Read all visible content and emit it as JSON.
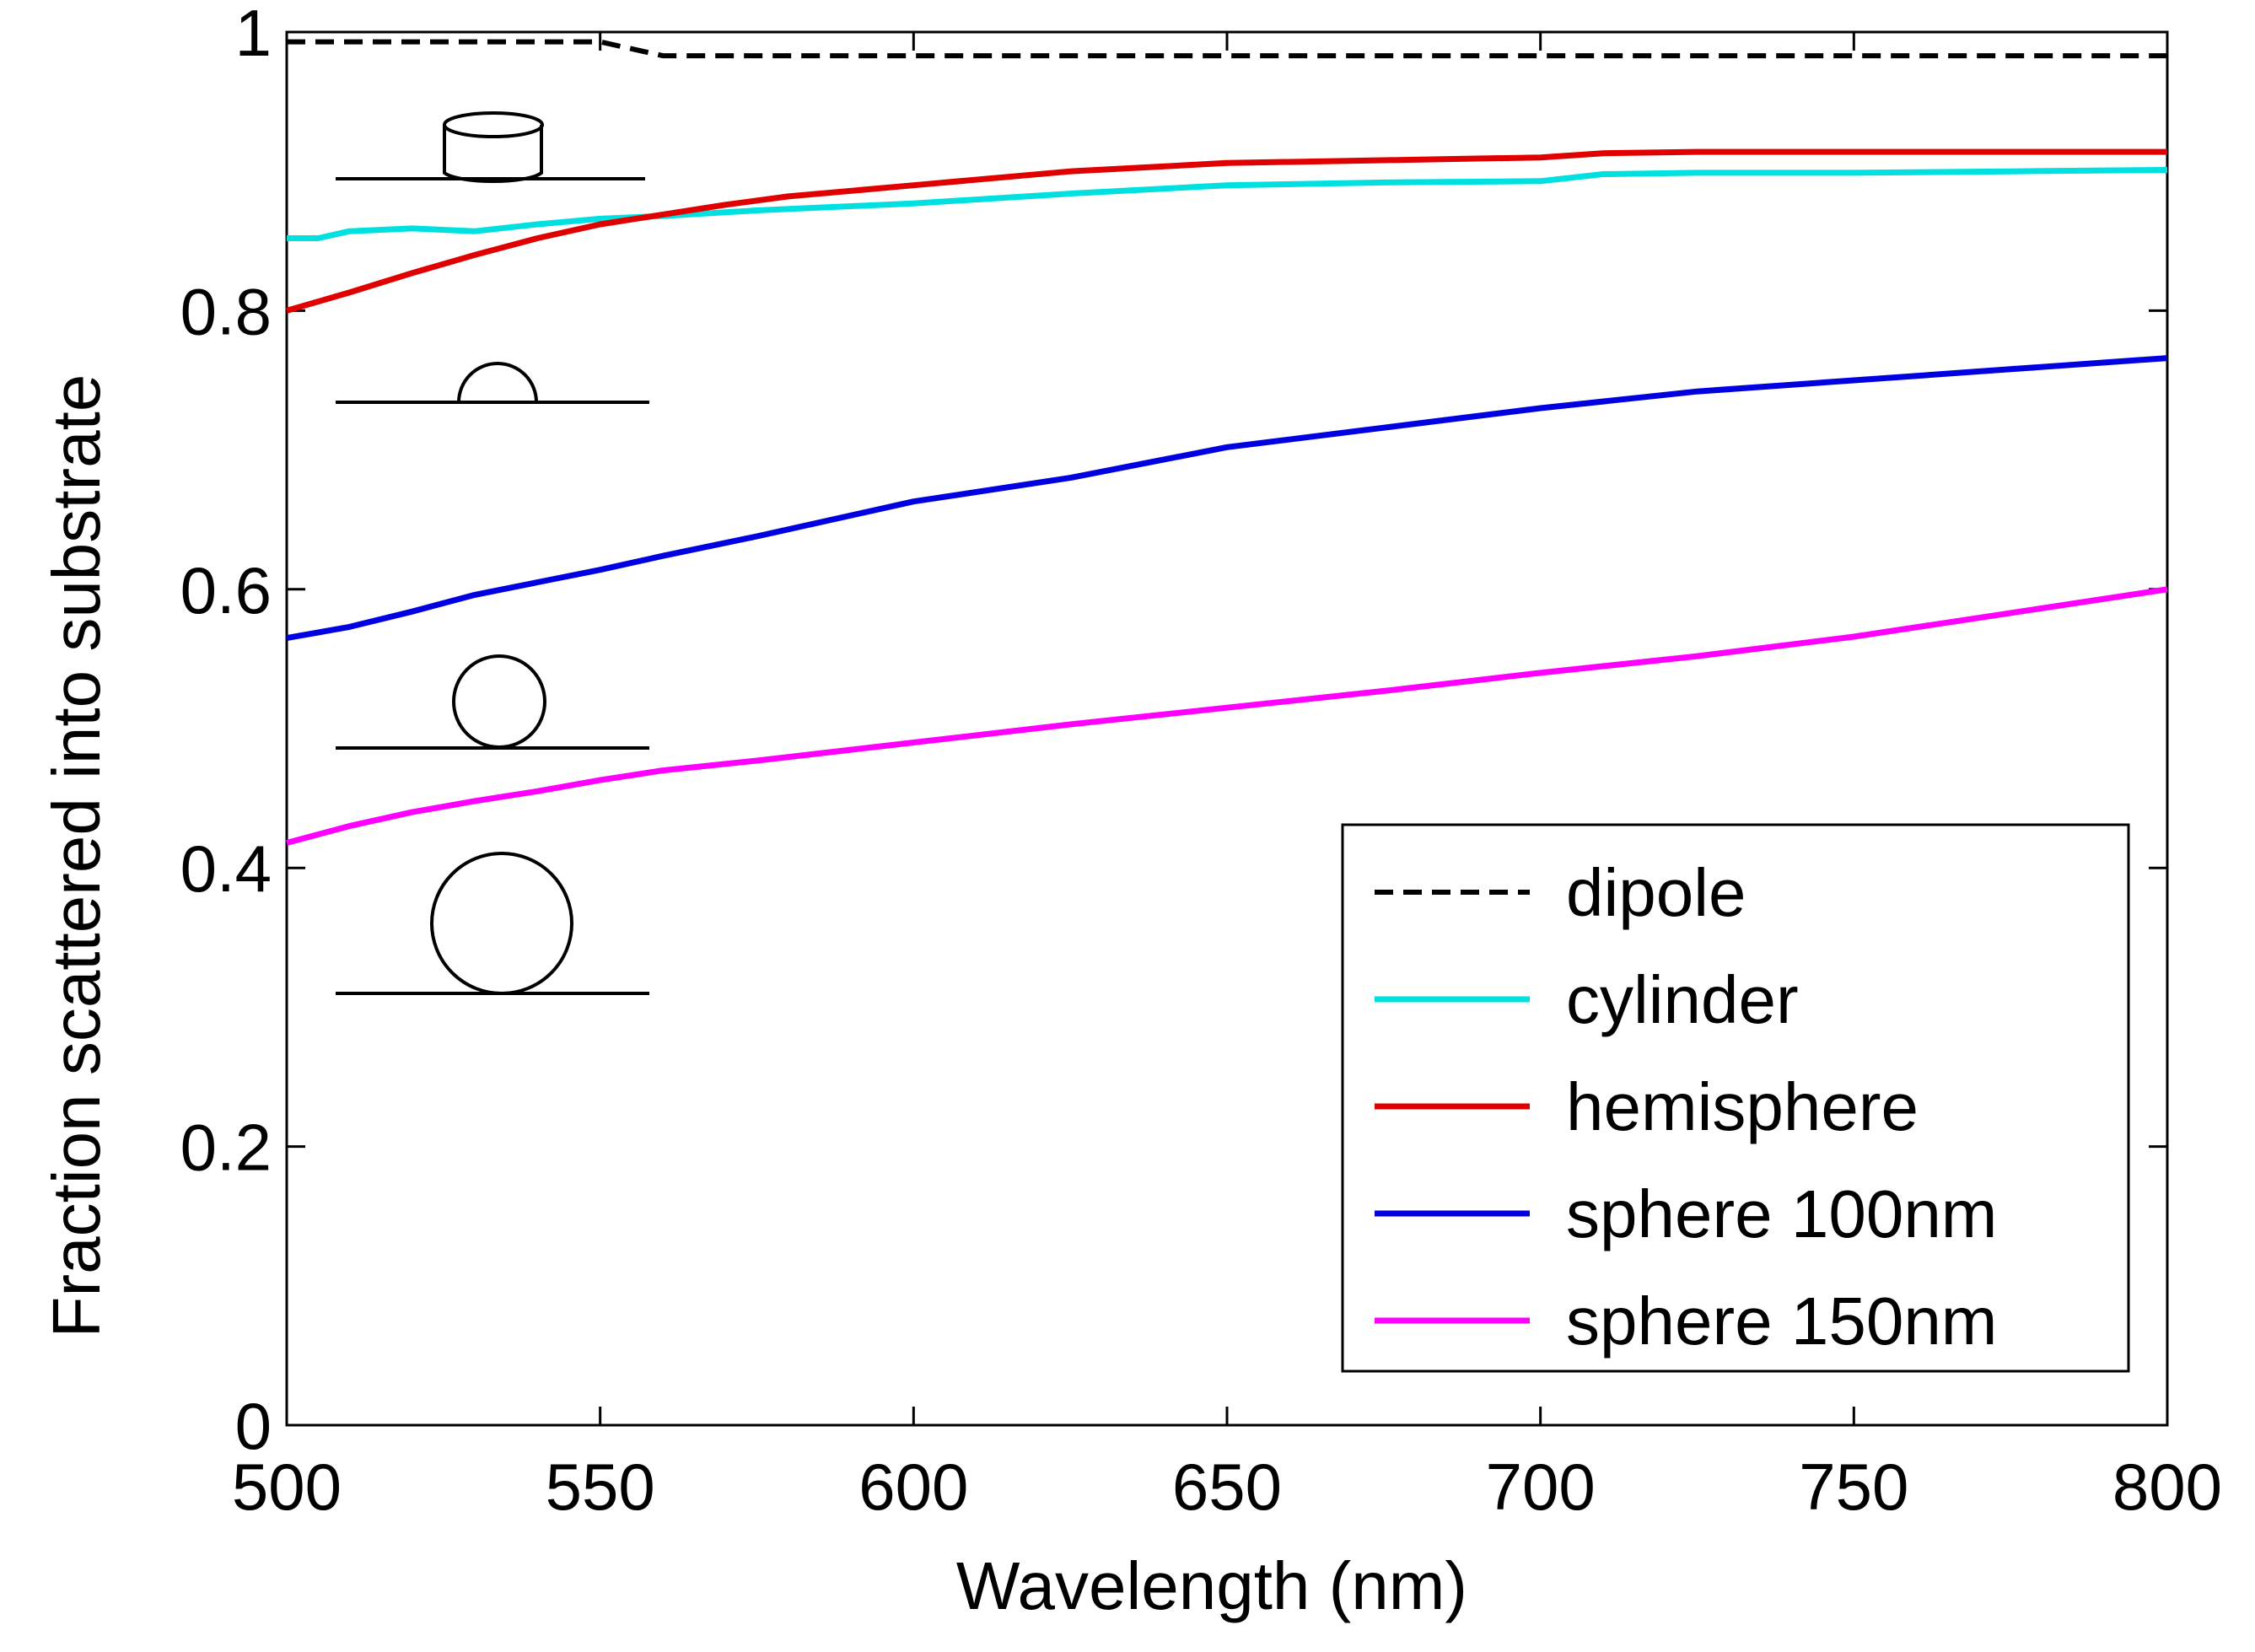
{
  "chart_data": {
    "type": "line",
    "xlabel": "Wavelength (nm)",
    "ylabel": "Fraction scattered into substrate",
    "xlim": [
      500,
      800
    ],
    "ylim": [
      0,
      1
    ],
    "xticks": [
      500,
      550,
      600,
      650,
      700,
      750,
      800
    ],
    "yticks": [
      0,
      0.2,
      0.4,
      0.6,
      0.8,
      1
    ],
    "ytick_labels": [
      "0",
      "0.2",
      "0.4",
      "0.6",
      "0.8",
      "1"
    ],
    "grid": false,
    "legend_position": "bottom-right",
    "series": [
      {
        "name": "dipole",
        "color": "#000000",
        "dash": true,
        "x": [
          500,
          550,
          560,
          600,
          650,
          700,
          750,
          800
        ],
        "y": [
          0.993,
          0.993,
          0.983,
          0.983,
          0.983,
          0.983,
          0.983,
          0.983
        ]
      },
      {
        "name": "cylinder",
        "color": "#00e0e0",
        "x": [
          500,
          505,
          510,
          520,
          530,
          540,
          550,
          560,
          575,
          600,
          625,
          650,
          675,
          700,
          710,
          725,
          750,
          775,
          800
        ],
        "y": [
          0.852,
          0.852,
          0.857,
          0.859,
          0.857,
          0.862,
          0.866,
          0.868,
          0.872,
          0.877,
          0.884,
          0.89,
          0.892,
          0.893,
          0.898,
          0.899,
          0.899,
          0.9,
          0.901
        ]
      },
      {
        "name": "hemisphere",
        "color": "#e00000",
        "x": [
          500,
          510,
          520,
          530,
          540,
          550,
          560,
          570,
          580,
          600,
          625,
          650,
          675,
          700,
          710,
          725,
          750,
          775,
          800
        ],
        "y": [
          0.8,
          0.813,
          0.827,
          0.84,
          0.852,
          0.862,
          0.869,
          0.876,
          0.882,
          0.89,
          0.9,
          0.906,
          0.908,
          0.91,
          0.913,
          0.914,
          0.914,
          0.914,
          0.914
        ]
      },
      {
        "name": "sphere 100nm",
        "color": "#0000e0",
        "x": [
          500,
          510,
          520,
          530,
          540,
          550,
          560,
          575,
          600,
          625,
          650,
          675,
          700,
          725,
          750,
          775,
          800
        ],
        "y": [
          0.565,
          0.573,
          0.584,
          0.596,
          0.605,
          0.614,
          0.624,
          0.638,
          0.663,
          0.68,
          0.702,
          0.716,
          0.73,
          0.742,
          0.75,
          0.758,
          0.766
        ]
      },
      {
        "name": "sphere 150nm",
        "color": "#ff00ff",
        "x": [
          500,
          510,
          520,
          530,
          540,
          550,
          560,
          575,
          600,
          625,
          650,
          675,
          700,
          725,
          750,
          775,
          800
        ],
        "y": [
          0.418,
          0.43,
          0.44,
          0.448,
          0.455,
          0.463,
          0.47,
          0.477,
          0.49,
          0.503,
          0.515,
          0.527,
          0.54,
          0.552,
          0.566,
          0.583,
          0.6
        ]
      }
    ],
    "insets": [
      "cylinder",
      "hemisphere",
      "sphere",
      "large-sphere"
    ]
  }
}
